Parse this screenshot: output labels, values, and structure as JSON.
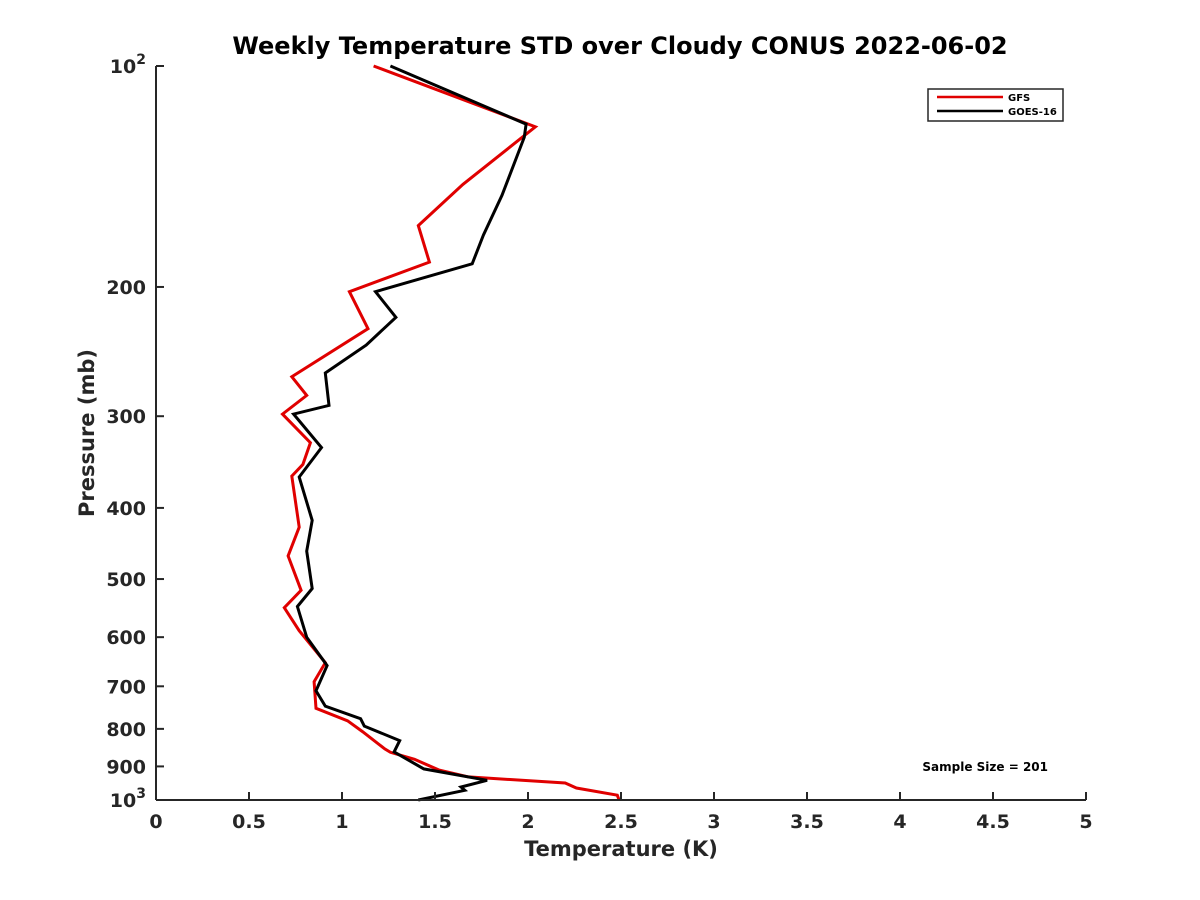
{
  "chart_data": {
    "type": "line",
    "title": "Weekly Temperature STD over Cloudy CONUS 2022-06-02",
    "xlabel": "Temperature (K)",
    "ylabel": "Pressure (mb)",
    "xlim": [
      0,
      5
    ],
    "ylim": [
      100,
      1000
    ],
    "y_scale": "log",
    "y_reversed": true,
    "grid": false,
    "legend_position": "top-right",
    "x_ticks": [
      "0",
      "0.5",
      "1",
      "1.5",
      "2",
      "2.5",
      "3",
      "3.5",
      "4",
      "4.5",
      "5"
    ],
    "x_tick_values": [
      0,
      0.5,
      1,
      1.5,
      2,
      2.5,
      3,
      3.5,
      4,
      4.5,
      5
    ],
    "y_ticks": [
      {
        "value": 100,
        "label": "10",
        "sup": "2"
      },
      {
        "value": 200,
        "label": "200",
        "sup": ""
      },
      {
        "value": 300,
        "label": "300",
        "sup": ""
      },
      {
        "value": 400,
        "label": "400",
        "sup": ""
      },
      {
        "value": 500,
        "label": "500",
        "sup": ""
      },
      {
        "value": 600,
        "label": "600",
        "sup": ""
      },
      {
        "value": 700,
        "label": "700",
        "sup": ""
      },
      {
        "value": 800,
        "label": "800",
        "sup": ""
      },
      {
        "value": 900,
        "label": "900",
        "sup": ""
      },
      {
        "value": 1000,
        "label": "10",
        "sup": "3"
      }
    ],
    "series": [
      {
        "name": "GFS",
        "color": "#e00000",
        "points": [
          [
            1.17,
            100
          ],
          [
            2.04,
            121
          ],
          [
            1.65,
            145
          ],
          [
            1.41,
            165
          ],
          [
            1.47,
            185
          ],
          [
            1.04,
            203
          ],
          [
            1.14,
            228
          ],
          [
            0.73,
            265
          ],
          [
            0.81,
            281
          ],
          [
            0.68,
            298
          ],
          [
            0.83,
            326
          ],
          [
            0.79,
            349
          ],
          [
            0.73,
            362
          ],
          [
            0.77,
            425
          ],
          [
            0.71,
            465
          ],
          [
            0.78,
            518
          ],
          [
            0.69,
            547
          ],
          [
            0.77,
            588
          ],
          [
            0.91,
            650
          ],
          [
            0.85,
            690
          ],
          [
            0.86,
            750
          ],
          [
            1.03,
            780
          ],
          [
            1.11,
            807
          ],
          [
            1.23,
            852
          ],
          [
            1.26,
            861
          ],
          [
            1.39,
            880
          ],
          [
            1.52,
            910
          ],
          [
            1.68,
            930
          ],
          [
            2.2,
            948
          ],
          [
            2.26,
            963
          ],
          [
            2.48,
            985
          ],
          [
            2.49,
            1000
          ]
        ]
      },
      {
        "name": "GOES-16",
        "color": "#000000",
        "points": [
          [
            1.26,
            100
          ],
          [
            1.99,
            120
          ],
          [
            1.98,
            125
          ],
          [
            1.86,
            150
          ],
          [
            1.76,
            170
          ],
          [
            1.7,
            186
          ],
          [
            1.18,
            203
          ],
          [
            1.29,
            220
          ],
          [
            1.13,
            240
          ],
          [
            0.91,
            262
          ],
          [
            0.93,
            290
          ],
          [
            0.74,
            298
          ],
          [
            0.89,
            331
          ],
          [
            0.77,
            363
          ],
          [
            0.84,
            416
          ],
          [
            0.81,
            458
          ],
          [
            0.84,
            515
          ],
          [
            0.76,
            545
          ],
          [
            0.81,
            600
          ],
          [
            0.92,
            656
          ],
          [
            0.86,
            710
          ],
          [
            0.91,
            745
          ],
          [
            1.1,
            775
          ],
          [
            1.12,
            793
          ],
          [
            1.31,
            830
          ],
          [
            1.28,
            860
          ],
          [
            1.44,
            907
          ],
          [
            1.78,
            940
          ],
          [
            1.64,
            960
          ],
          [
            1.66,
            970
          ],
          [
            1.41,
            1000
          ]
        ]
      }
    ],
    "annotations": [
      "Sample Size = 201"
    ]
  }
}
